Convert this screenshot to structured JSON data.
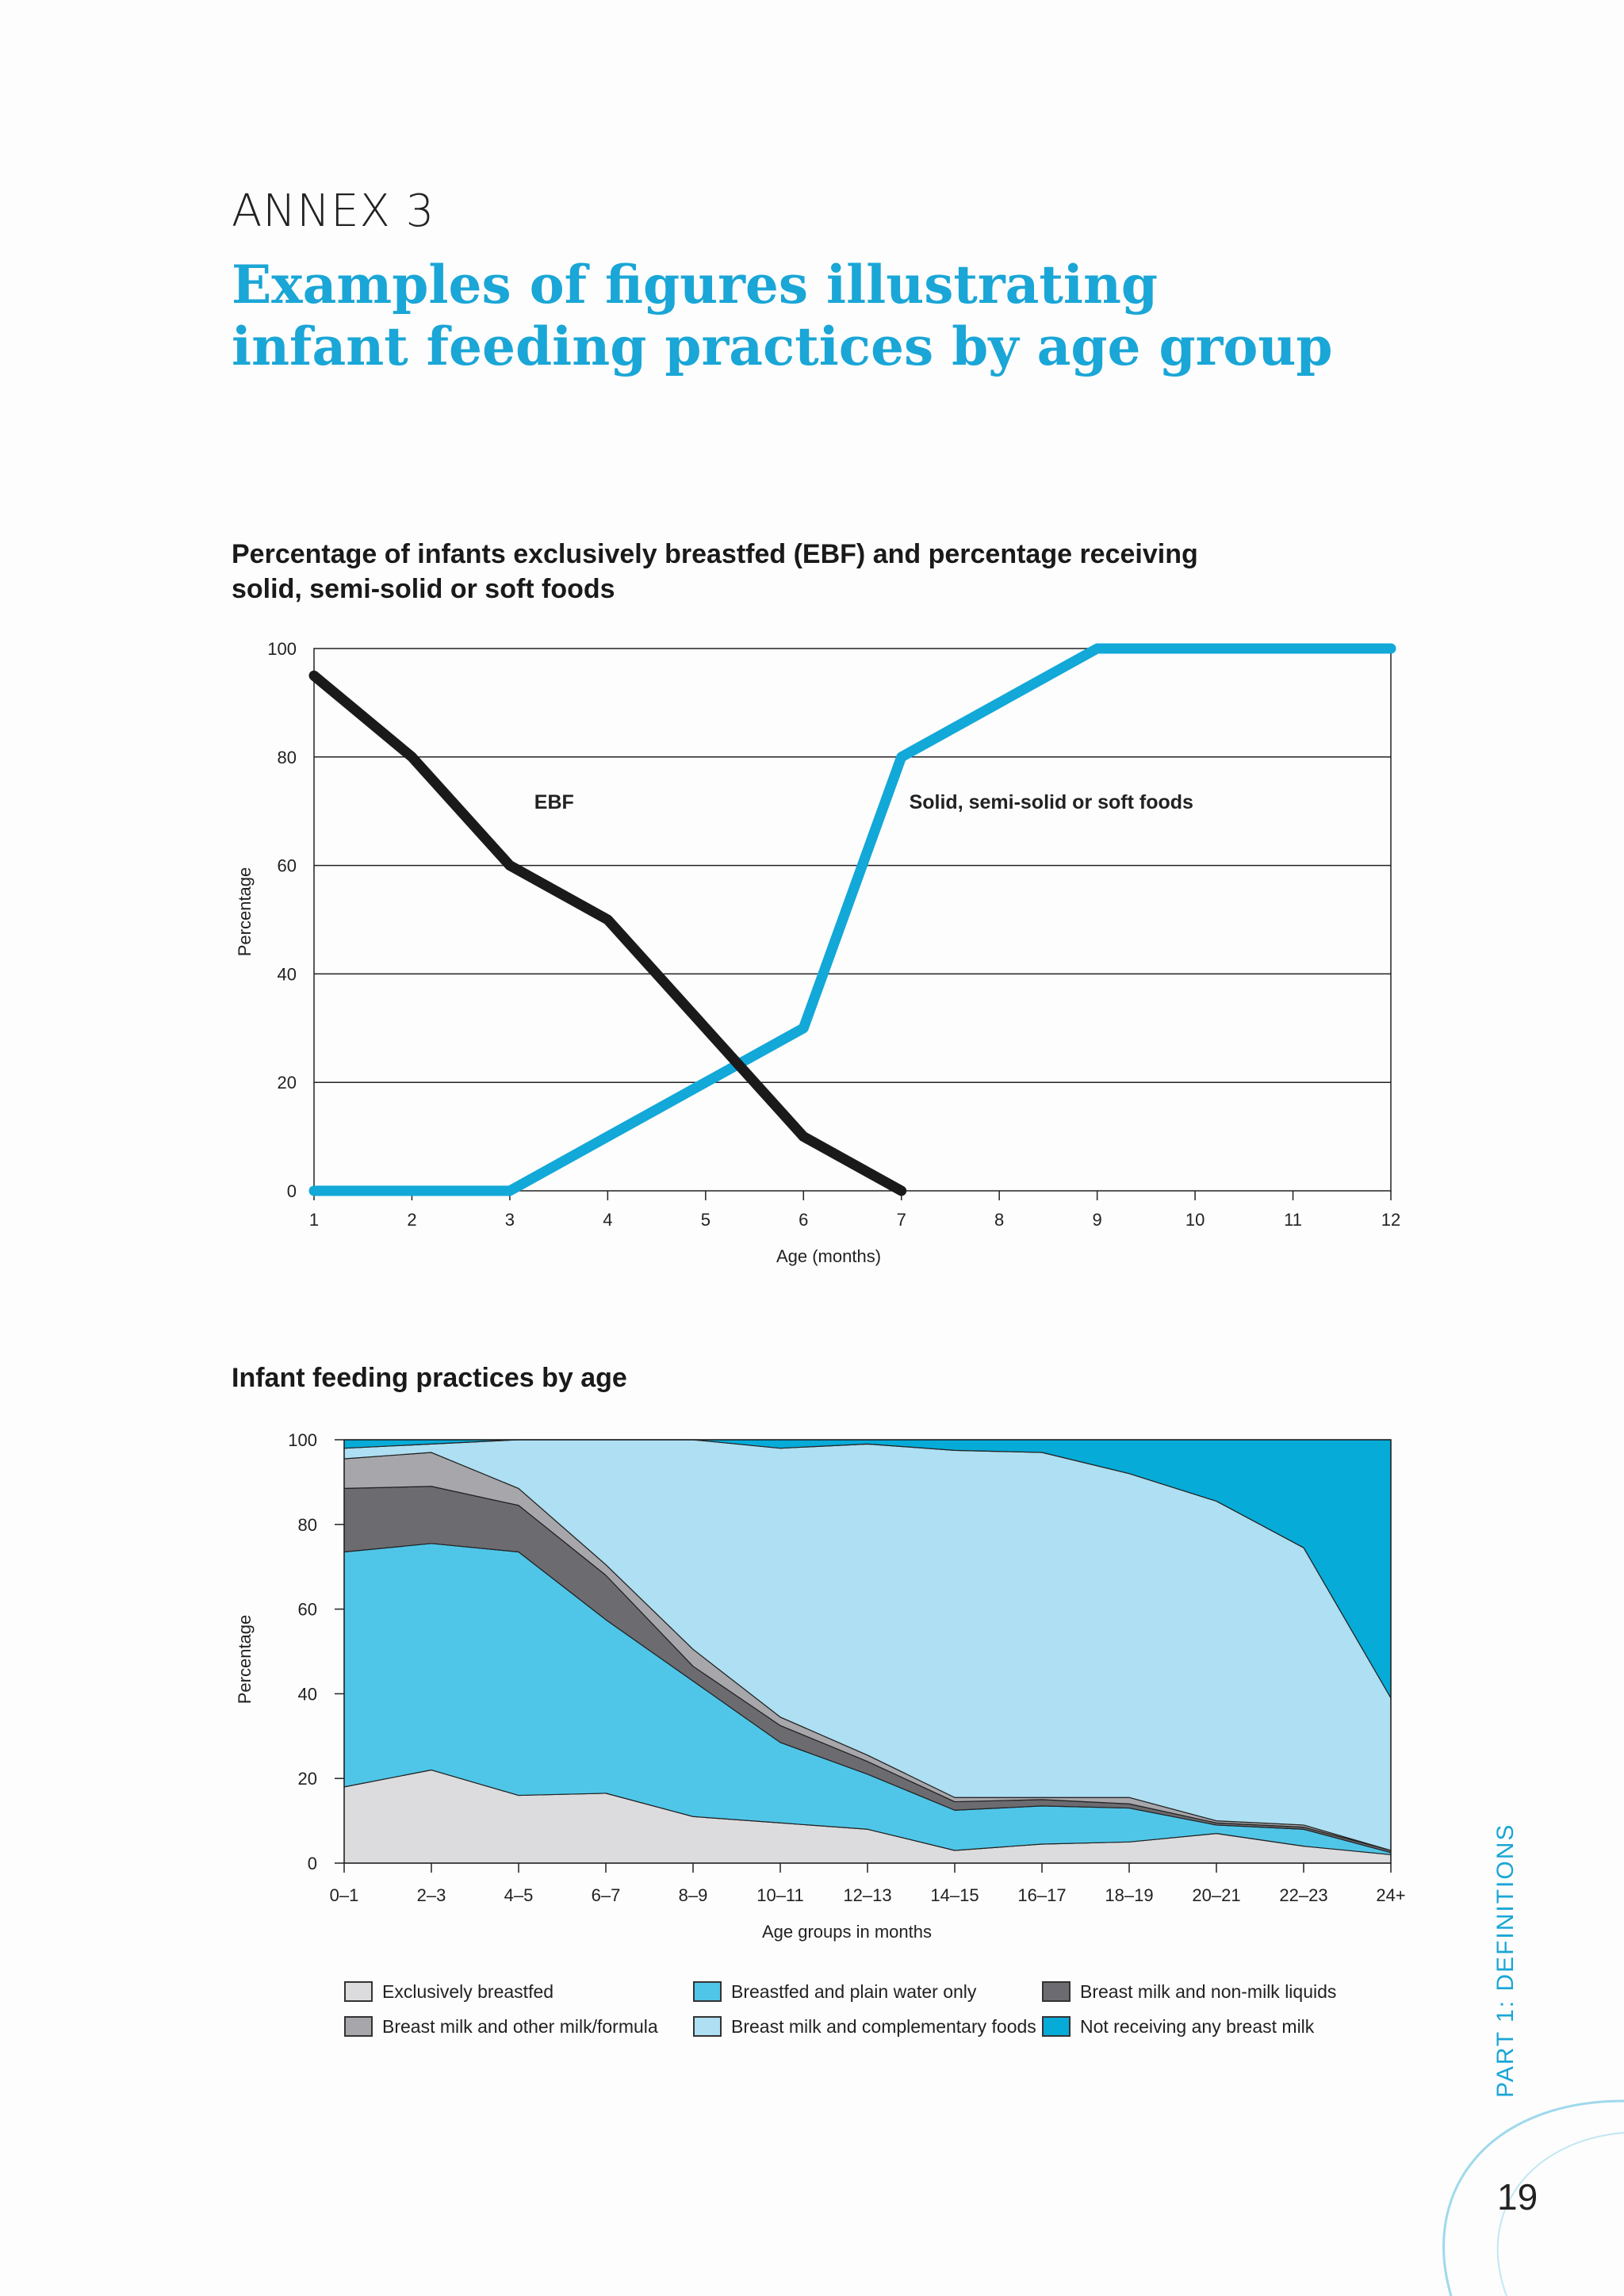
{
  "header": {
    "annex": "ANNEX 3",
    "title_line1": "Examples of figures illustrating",
    "title_line2": "infant feeding practices by age group"
  },
  "colors": {
    "accent": "#1aa6d6",
    "ebf_line": "#1a1a1a",
    "solid_foods_line": "#12a8d8"
  },
  "footer": {
    "side_label": "PART 1: DEFINITIONS",
    "page_number": "19"
  },
  "chart_data": [
    {
      "type": "line",
      "title": "Percentage of infants exclusively breastfed (EBF) and percentage receiving solid, semi-solid or soft foods",
      "title_line1": "Percentage of infants exclusively breastfed (EBF) and percentage receiving",
      "title_line2": "solid, semi-solid or soft foods",
      "xlabel": "Age (months)",
      "ylabel": "Percentage",
      "x": [
        1,
        2,
        3,
        4,
        5,
        6,
        7,
        8,
        9,
        10,
        11,
        12
      ],
      "xlim": [
        1,
        12
      ],
      "ylim": [
        0,
        100
      ],
      "yticks": [
        0,
        20,
        40,
        60,
        80,
        100
      ],
      "grid": "horizontal",
      "series": [
        {
          "name": "EBF",
          "color": "#1a1a1a",
          "points": [
            [
              1,
              95
            ],
            [
              2,
              80
            ],
            [
              3,
              60
            ],
            [
              4,
              50
            ],
            [
              5,
              30
            ],
            [
              6,
              10
            ],
            [
              7,
              0
            ]
          ]
        },
        {
          "name": "Solid, semi-solid or soft foods",
          "color": "#12a8d8",
          "points": [
            [
              1,
              0
            ],
            [
              2,
              0
            ],
            [
              3,
              0
            ],
            [
              4,
              10
            ],
            [
              5,
              20
            ],
            [
              6,
              30
            ],
            [
              7,
              80
            ],
            [
              8,
              90
            ],
            [
              9,
              100
            ],
            [
              10,
              100
            ],
            [
              11,
              100
            ],
            [
              12,
              100
            ]
          ]
        }
      ]
    },
    {
      "type": "area",
      "stacked": true,
      "title": "Infant feeding practices by age",
      "xlabel": "Age groups in months",
      "ylabel": "Percentage",
      "categories": [
        "0–1",
        "2–3",
        "4–5",
        "6–7",
        "8–9",
        "10–11",
        "12–13",
        "14–15",
        "16–17",
        "18–19",
        "20–21",
        "22–23",
        "24+"
      ],
      "ylim": [
        0,
        100
      ],
      "yticks": [
        0,
        20,
        40,
        60,
        80,
        100
      ],
      "legend_position": "bottom",
      "series": [
        {
          "name": "Exclusively breastfed",
          "color": "#dcdcdf",
          "values": [
            18,
            22,
            16,
            16.5,
            11,
            9.5,
            8,
            3,
            4.5,
            5,
            7,
            4,
            2
          ]
        },
        {
          "name": "Breastfed and plain water only",
          "color": "#4fc6e8",
          "values": [
            55.5,
            53.5,
            57.5,
            41,
            32,
            19,
            13,
            9.5,
            9,
            8,
            2,
            4,
            0.5
          ]
        },
        {
          "name": "Breast milk and non-milk liquids",
          "color": "#6b6b70",
          "values": [
            15,
            13.5,
            11,
            10.5,
            3.5,
            4,
            3,
            2,
            1.5,
            1,
            0.5,
            0.5,
            0.5
          ]
        },
        {
          "name": "Breast milk and other milk/formula",
          "color": "#a7a7ab",
          "values": [
            7,
            8,
            4,
            2.5,
            4,
            2,
            1.5,
            1,
            0.5,
            1.5,
            0.5,
            0.5,
            0
          ]
        },
        {
          "name": "Breast milk and complementary foods",
          "color": "#aedff2",
          "values": [
            2.5,
            2,
            11.5,
            29.5,
            49.5,
            63.5,
            73.5,
            82,
            81.5,
            76.5,
            75.5,
            65.5,
            36
          ]
        },
        {
          "name": "Not receiving any breast milk",
          "color": "#06abd8",
          "values": [
            2,
            1,
            0,
            0,
            0,
            2,
            1,
            2.5,
            3,
            8,
            14.5,
            25.5,
            61
          ]
        }
      ]
    }
  ]
}
